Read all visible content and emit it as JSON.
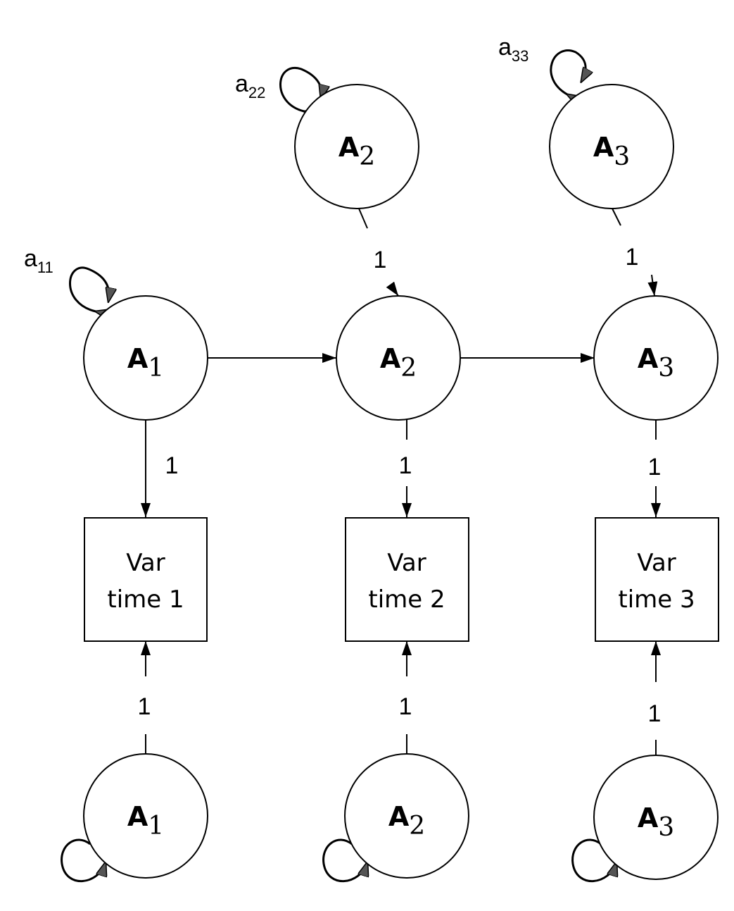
{
  "nodes": {
    "top_a2": {
      "letter": "A",
      "sub": "2"
    },
    "top_a3": {
      "letter": "A",
      "sub": "3"
    },
    "mid_a1": {
      "letter": "A",
      "sub": "1"
    },
    "mid_a2": {
      "letter": "A",
      "sub": "2"
    },
    "mid_a3": {
      "letter": "A",
      "sub": "3"
    },
    "bot_a1": {
      "letter": "A",
      "sub": "1"
    },
    "bot_a2": {
      "letter": "A",
      "sub": "2"
    },
    "bot_a3": {
      "letter": "A",
      "sub": "3"
    }
  },
  "observed": {
    "var1": {
      "line1": "Var",
      "line2": "time 1"
    },
    "var2": {
      "line1": "Var",
      "line2": "time 2"
    },
    "var3": {
      "line1": "Var",
      "line2": "time 3"
    }
  },
  "variances": {
    "a11": {
      "base": "a",
      "sub": "11"
    },
    "a22": {
      "base": "a",
      "sub": "22"
    },
    "a33": {
      "base": "a",
      "sub": "33"
    }
  },
  "edge_labels": {
    "top2_to_mid2": "1",
    "top3_to_mid3": "1",
    "mid1_to_var1": "1",
    "mid2_to_var2": "1",
    "mid3_to_var3": "1",
    "bot1_to_var1": "1",
    "bot2_to_var2": "1",
    "bot3_to_var3": "1"
  }
}
